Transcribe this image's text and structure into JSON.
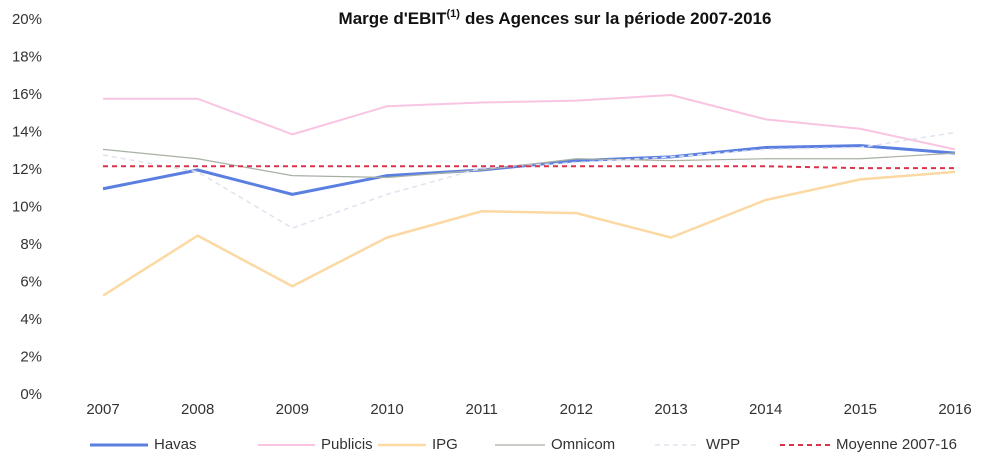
{
  "chart_data": {
    "type": "line",
    "title": {
      "text": "Marge d'EBIT",
      "superscript": "(1)",
      "rest": "des Agences sur la période 2007-2016"
    },
    "categories": [
      "2007",
      "2008",
      "2009",
      "2010",
      "2011",
      "2012",
      "2013",
      "2014",
      "2015",
      "2016"
    ],
    "series": [
      {
        "name": "Havas",
        "color": "#5b7fe0",
        "style": "solid",
        "values": [
          11.0,
          12.0,
          10.7,
          11.7,
          12.0,
          12.5,
          12.7,
          13.2,
          13.3,
          12.9
        ]
      },
      {
        "name": "Publicis",
        "color": "#f9c4e2",
        "style": "solid",
        "values": [
          15.8,
          15.8,
          13.9,
          15.4,
          15.6,
          15.7,
          16.0,
          14.7,
          14.2,
          13.1
        ]
      },
      {
        "name": "IPG",
        "color": "#fcd9a3",
        "style": "solid",
        "values": [
          5.3,
          8.5,
          5.8,
          8.4,
          9.8,
          9.7,
          8.4,
          10.4,
          11.5,
          11.9
        ]
      },
      {
        "name": "Omnicom",
        "color": "#a7b0a4",
        "style": "solid",
        "values": [
          13.1,
          12.6,
          11.7,
          11.6,
          12.0,
          12.6,
          12.5,
          12.6,
          12.6,
          12.9
        ]
      },
      {
        "name": "WPP",
        "color": "#dfe3ef",
        "style": "dashed",
        "values": [
          12.8,
          11.9,
          8.9,
          10.7,
          12.1,
          12.4,
          12.7,
          13.1,
          13.2,
          14.0
        ]
      },
      {
        "name": "Moyenne 2007-16",
        "color": "#d9334a",
        "style": "dashed",
        "values": [
          12.2,
          12.2,
          12.2,
          12.2,
          12.2,
          12.2,
          12.2,
          12.2,
          12.1,
          12.1
        ]
      }
    ],
    "ylim": [
      0,
      20
    ],
    "yticks": [
      {
        "value": 0,
        "label": "0%"
      },
      {
        "value": 2,
        "label": "2%"
      },
      {
        "value": 4,
        "label": "4%"
      },
      {
        "value": 6,
        "label": "6%"
      },
      {
        "value": 8,
        "label": "8%"
      },
      {
        "value": 10,
        "label": "10%"
      },
      {
        "value": 12,
        "label": "12%"
      },
      {
        "value": 14,
        "label": "14%"
      },
      {
        "value": 16,
        "label": "16%"
      },
      {
        "value": 18,
        "label": "18%"
      },
      {
        "value": 20,
        "label": "20%"
      }
    ],
    "grid": false,
    "legend": "bottom"
  }
}
